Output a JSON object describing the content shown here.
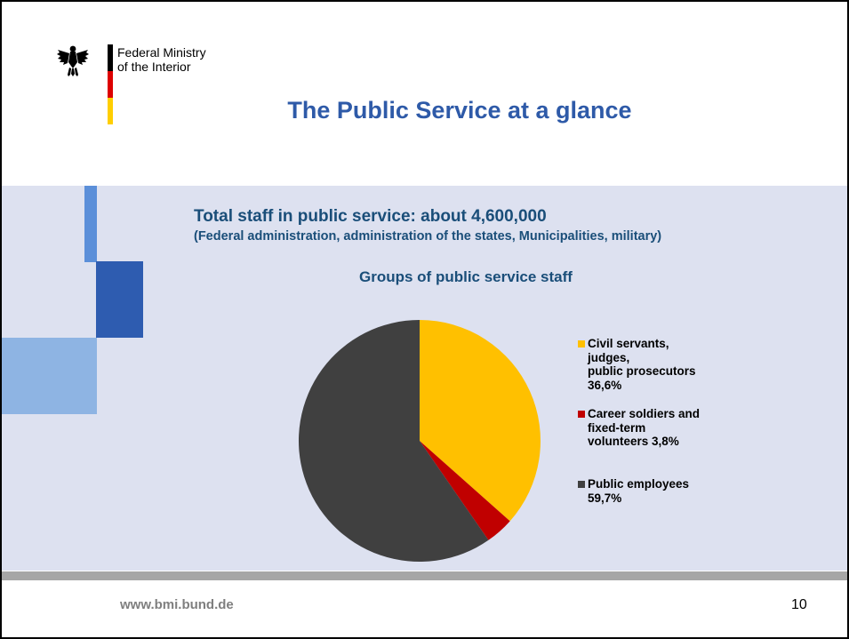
{
  "header": {
    "ministry_line1": "Federal Ministry",
    "ministry_line2": "of the Interior",
    "flag_colors": [
      "#000000",
      "#dd0000",
      "#ffce00"
    ],
    "logo_icon": "federal-eagle-icon"
  },
  "slide_title": "The Public Service at a glance",
  "content": {
    "headline": "Total staff in public service:  about 4,600,000",
    "subline": "(Federal administration, administration of the states, Municipalities, military)"
  },
  "chart_data": {
    "type": "pie",
    "title": "Groups of public service staff",
    "categories": [
      "Civil servants,\njudges,\npublic prosecutors\n36,6%",
      "Career soldiers and\nfixed-term\nvolunteers 3,8%",
      "Public employees\n59,7%"
    ],
    "values": [
      36.6,
      3.8,
      59.7
    ],
    "colors": [
      "#ffc000",
      "#c00000",
      "#404040"
    ],
    "legend_position": "right"
  },
  "colors": {
    "title_blue": "#2e5aa8",
    "text_navy": "#1a4e79",
    "panel_bg": "#dde1f0",
    "deco_colors": [
      "#5b8fd9",
      "#2e5cb0",
      "#8eb4e3"
    ]
  },
  "footer": {
    "url": "www.bmi.bund.de",
    "page_number": "10"
  }
}
